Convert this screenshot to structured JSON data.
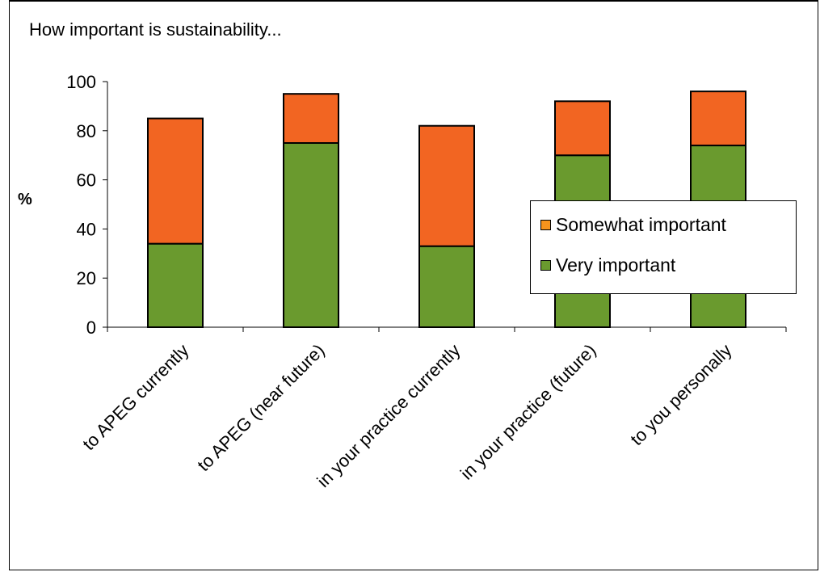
{
  "chart_data": {
    "type": "bar",
    "stacked": true,
    "title": "How important is sustainability...",
    "ylabel": "%",
    "xlabel": "",
    "ylim": [
      0,
      100
    ],
    "yticks": [
      "0",
      "20",
      "40",
      "60",
      "80",
      "100"
    ],
    "categories": [
      "to APEG currently",
      "to APEG (near future)",
      "in your practice currently",
      "in your practice (future)",
      "to you personally"
    ],
    "series": [
      {
        "name": "Very important",
        "color": "#6a9a2e",
        "values": [
          34,
          75,
          33,
          70,
          74
        ]
      },
      {
        "name": "Somewhat important",
        "color": "#f26522",
        "values": [
          51,
          20,
          49,
          22,
          22
        ]
      }
    ],
    "legend": {
      "position": "right",
      "items": [
        {
          "label": "Somewhat important",
          "color": "#f7941d"
        },
        {
          "label": "Very important",
          "color": "#6a9a2e"
        }
      ]
    }
  }
}
